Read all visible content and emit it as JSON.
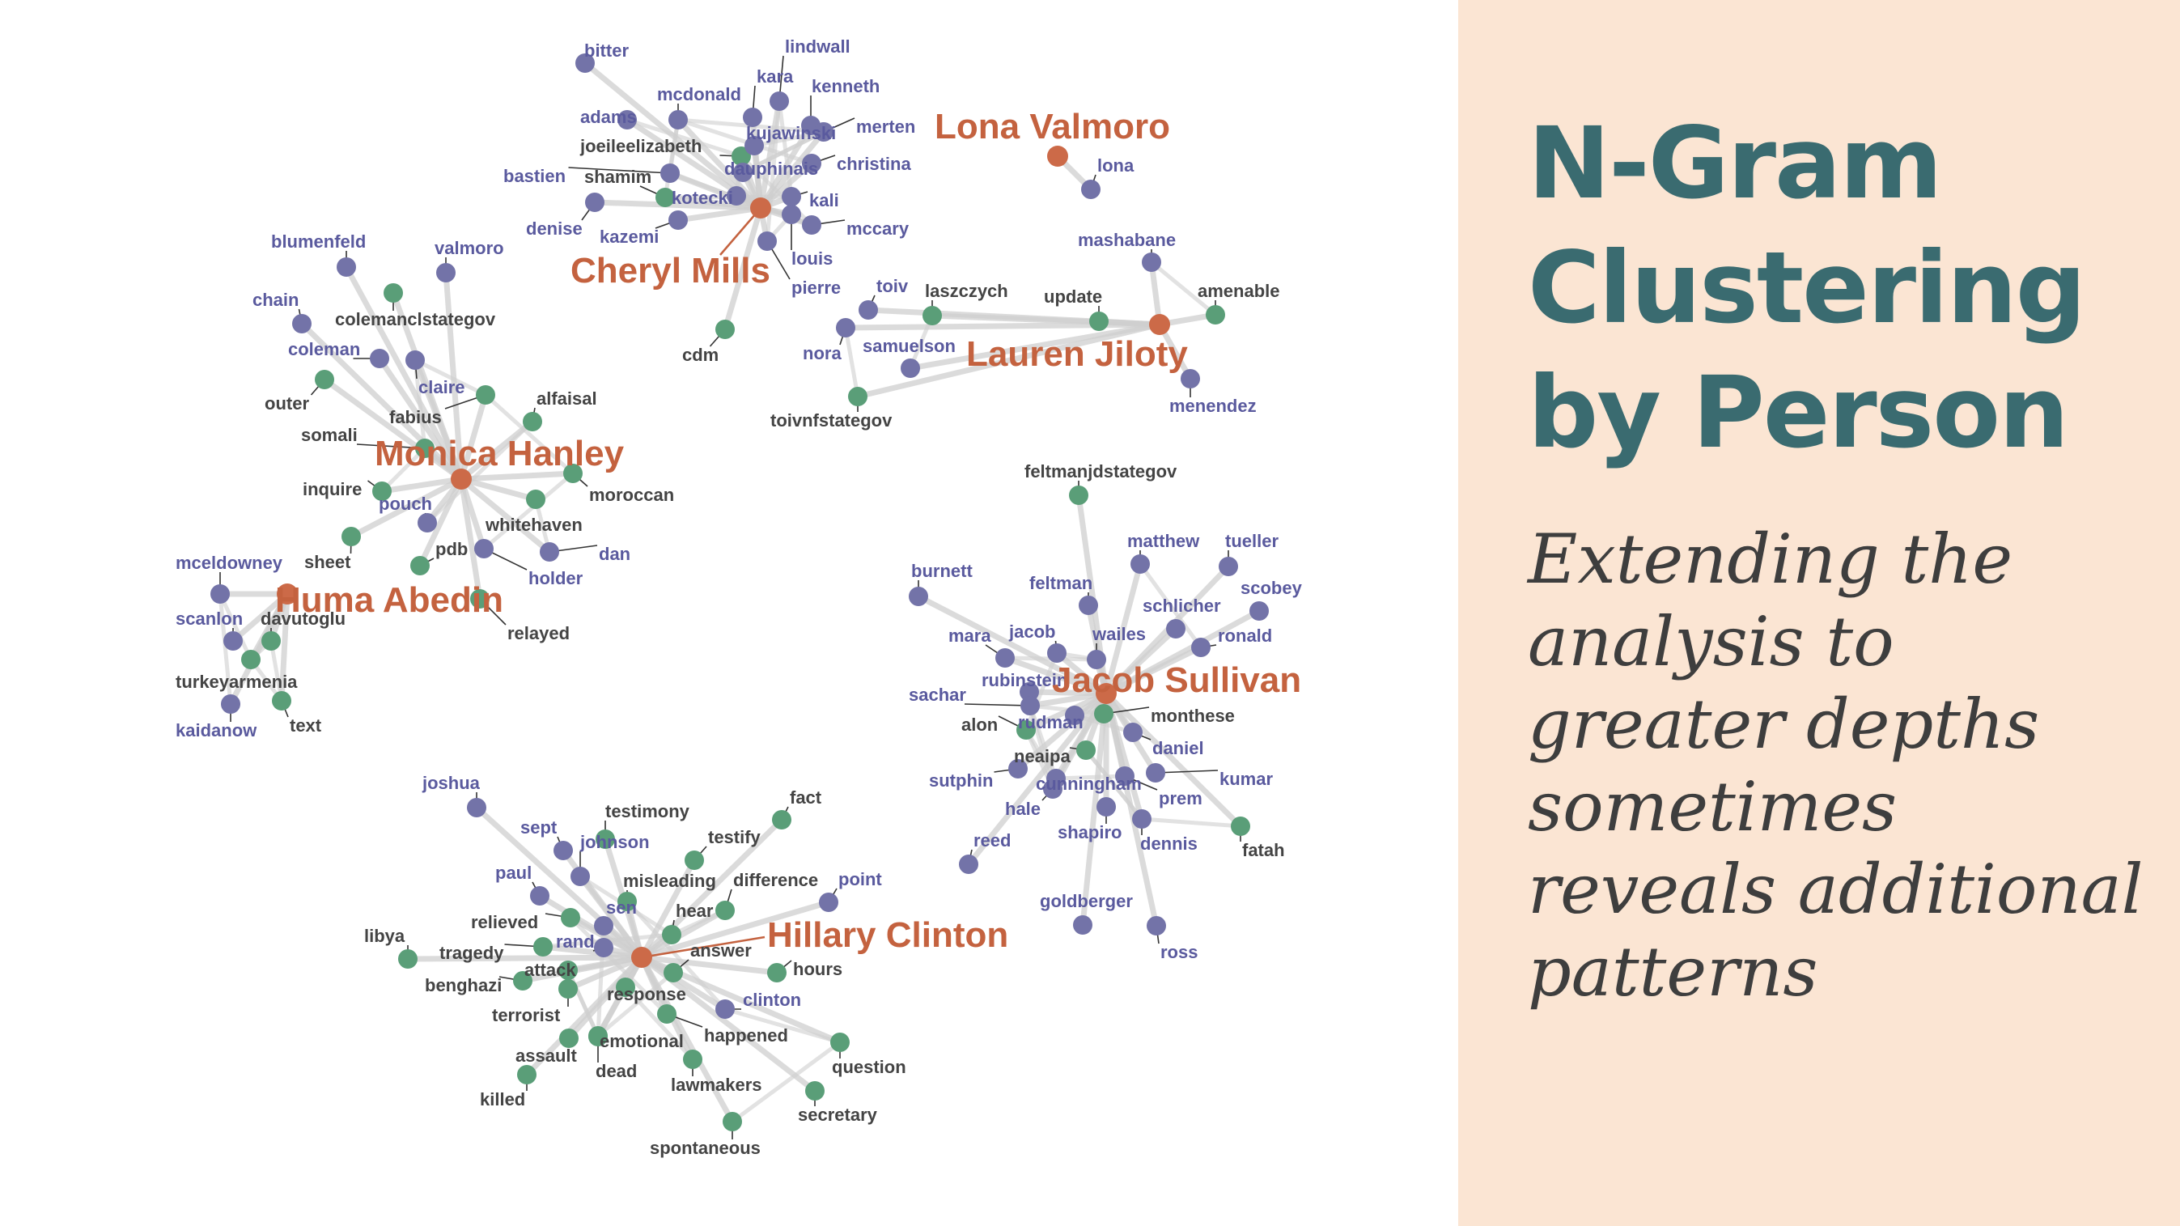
{
  "slide": {
    "title_lines": [
      "N-Gram",
      "Clustering",
      "by Person"
    ],
    "subtitle_lines": [
      "Extending the",
      "analysis to",
      "greater depths",
      "sometimes",
      "reveals additional",
      "patterns"
    ]
  },
  "colors": {
    "person": "#c4623f",
    "person_node": "#cc6a48",
    "name_node": "#7373a8",
    "name_text": "#5a5a9e",
    "topic_node": "#5a9e78",
    "topic_text": "#444444",
    "edge": "#cfcfcf",
    "sidebar_bg": "#fbe5d3",
    "title": "#3a6b70"
  },
  "diagram": {
    "persons": [
      "Lona Valmoro",
      "Cheryl Mills",
      "Lauren Jiloty",
      "Monica Hanley",
      "Huma Abedin",
      "Jacob Sullivan",
      "Hillary Clinton"
    ],
    "clusters": [
      {
        "person": "Cheryl Mills",
        "terms": [
          {
            "t": "bitter",
            "k": "name"
          },
          {
            "t": "lindwall",
            "k": "name"
          },
          {
            "t": "kara",
            "k": "name"
          },
          {
            "t": "mcdonald",
            "k": "name"
          },
          {
            "t": "kenneth",
            "k": "name"
          },
          {
            "t": "adams",
            "k": "name"
          },
          {
            "t": "merten",
            "k": "name"
          },
          {
            "t": "joeileelizabeth",
            "k": "topic"
          },
          {
            "t": "kujawinski",
            "k": "name"
          },
          {
            "t": "dauphinais",
            "k": "name"
          },
          {
            "t": "christina",
            "k": "name"
          },
          {
            "t": "bastien",
            "k": "name"
          },
          {
            "t": "shamim",
            "k": "topic"
          },
          {
            "t": "kotecki",
            "k": "name"
          },
          {
            "t": "kali",
            "k": "name"
          },
          {
            "t": "denise",
            "k": "name"
          },
          {
            "t": "kazemi",
            "k": "name"
          },
          {
            "t": "mccary",
            "k": "name"
          },
          {
            "t": "louis",
            "k": "name"
          },
          {
            "t": "pierre",
            "k": "name"
          },
          {
            "t": "cdm",
            "k": "topic"
          }
        ]
      },
      {
        "person": "Lona Valmoro",
        "terms": [
          {
            "t": "lona",
            "k": "name"
          }
        ]
      },
      {
        "person": "Lauren Jiloty",
        "terms": [
          {
            "t": "mashabane",
            "k": "name"
          },
          {
            "t": "update",
            "k": "topic"
          },
          {
            "t": "amenable",
            "k": "topic"
          },
          {
            "t": "menendez",
            "k": "name"
          },
          {
            "t": "toiv",
            "k": "name"
          },
          {
            "t": "laszczych",
            "k": "topic"
          },
          {
            "t": "nora",
            "k": "name"
          },
          {
            "t": "samuelson",
            "k": "name"
          },
          {
            "t": "toivnfstategov",
            "k": "topic"
          }
        ]
      },
      {
        "person": "Monica Hanley",
        "terms": [
          {
            "t": "blumenfeld",
            "k": "name"
          },
          {
            "t": "valmoro",
            "k": "name"
          },
          {
            "t": "chain",
            "k": "name"
          },
          {
            "t": "colemanclstategov",
            "k": "topic"
          },
          {
            "t": "coleman",
            "k": "name"
          },
          {
            "t": "outer",
            "k": "topic"
          },
          {
            "t": "claire",
            "k": "name"
          },
          {
            "t": "fabius",
            "k": "topic"
          },
          {
            "t": "alfaisal",
            "k": "topic"
          },
          {
            "t": "somali",
            "k": "topic"
          },
          {
            "t": "inquire",
            "k": "topic"
          },
          {
            "t": "pouch",
            "k": "name"
          },
          {
            "t": "moroccan",
            "k": "topic"
          },
          {
            "t": "whitehaven",
            "k": "topic"
          },
          {
            "t": "pdb",
            "k": "topic"
          },
          {
            "t": "dan",
            "k": "name"
          },
          {
            "t": "holder",
            "k": "name"
          },
          {
            "t": "sheet",
            "k": "topic"
          },
          {
            "t": "relayed",
            "k": "topic"
          }
        ]
      },
      {
        "person": "Huma Abedin",
        "terms": [
          {
            "t": "mceldowney",
            "k": "name"
          },
          {
            "t": "scanlon",
            "k": "name"
          },
          {
            "t": "davutoglu",
            "k": "topic"
          },
          {
            "t": "turkeyarmenia",
            "k": "topic"
          },
          {
            "t": "kaidanow",
            "k": "name"
          },
          {
            "t": "text",
            "k": "topic"
          }
        ]
      },
      {
        "person": "Jacob Sullivan",
        "terms": [
          {
            "t": "feltmanjdstategov",
            "k": "topic"
          },
          {
            "t": "matthew",
            "k": "name"
          },
          {
            "t": "tueller",
            "k": "name"
          },
          {
            "t": "burnett",
            "k": "name"
          },
          {
            "t": "feltman",
            "k": "name"
          },
          {
            "t": "scobey",
            "k": "name"
          },
          {
            "t": "schlicher",
            "k": "name"
          },
          {
            "t": "mara",
            "k": "name"
          },
          {
            "t": "jacob",
            "k": "name"
          },
          {
            "t": "wailes",
            "k": "name"
          },
          {
            "t": "ronald",
            "k": "name"
          },
          {
            "t": "rubinstein",
            "k": "name"
          },
          {
            "t": "sachar",
            "k": "name"
          },
          {
            "t": "alon",
            "k": "topic"
          },
          {
            "t": "rudman",
            "k": "name"
          },
          {
            "t": "monthese",
            "k": "topic"
          },
          {
            "t": "daniel",
            "k": "name"
          },
          {
            "t": "neaipa",
            "k": "topic"
          },
          {
            "t": "sutphin",
            "k": "name"
          },
          {
            "t": "cunningham",
            "k": "name"
          },
          {
            "t": "kumar",
            "k": "name"
          },
          {
            "t": "hale",
            "k": "name"
          },
          {
            "t": "prem",
            "k": "name"
          },
          {
            "t": "reed",
            "k": "name"
          },
          {
            "t": "shapiro",
            "k": "name"
          },
          {
            "t": "dennis",
            "k": "name"
          },
          {
            "t": "fatah",
            "k": "topic"
          },
          {
            "t": "goldberger",
            "k": "name"
          },
          {
            "t": "ross",
            "k": "name"
          }
        ]
      },
      {
        "person": "Hillary Clinton",
        "terms": [
          {
            "t": "joshua",
            "k": "name"
          },
          {
            "t": "testimony",
            "k": "topic"
          },
          {
            "t": "fact",
            "k": "topic"
          },
          {
            "t": "sept",
            "k": "name"
          },
          {
            "t": "testify",
            "k": "topic"
          },
          {
            "t": "johnson",
            "k": "name"
          },
          {
            "t": "paul",
            "k": "name"
          },
          {
            "t": "misleading",
            "k": "topic"
          },
          {
            "t": "difference",
            "k": "topic"
          },
          {
            "t": "point",
            "k": "name"
          },
          {
            "t": "sen",
            "k": "name"
          },
          {
            "t": "hear",
            "k": "topic"
          },
          {
            "t": "relieved",
            "k": "topic"
          },
          {
            "t": "libya",
            "k": "topic"
          },
          {
            "t": "rand",
            "k": "name"
          },
          {
            "t": "tragedy",
            "k": "topic"
          },
          {
            "t": "answer",
            "k": "topic"
          },
          {
            "t": "attack",
            "k": "topic"
          },
          {
            "t": "hours",
            "k": "topic"
          },
          {
            "t": "benghazi",
            "k": "topic"
          },
          {
            "t": "response",
            "k": "topic"
          },
          {
            "t": "clinton",
            "k": "name"
          },
          {
            "t": "terrorist",
            "k": "topic"
          },
          {
            "t": "emotional",
            "k": "topic"
          },
          {
            "t": "happened",
            "k": "topic"
          },
          {
            "t": "assault",
            "k": "topic"
          },
          {
            "t": "dead",
            "k": "topic"
          },
          {
            "t": "question",
            "k": "topic"
          },
          {
            "t": "killed",
            "k": "topic"
          },
          {
            "t": "lawmakers",
            "k": "topic"
          },
          {
            "t": "secretary",
            "k": "topic"
          },
          {
            "t": "spontaneous",
            "k": "topic"
          }
        ]
      }
    ]
  }
}
